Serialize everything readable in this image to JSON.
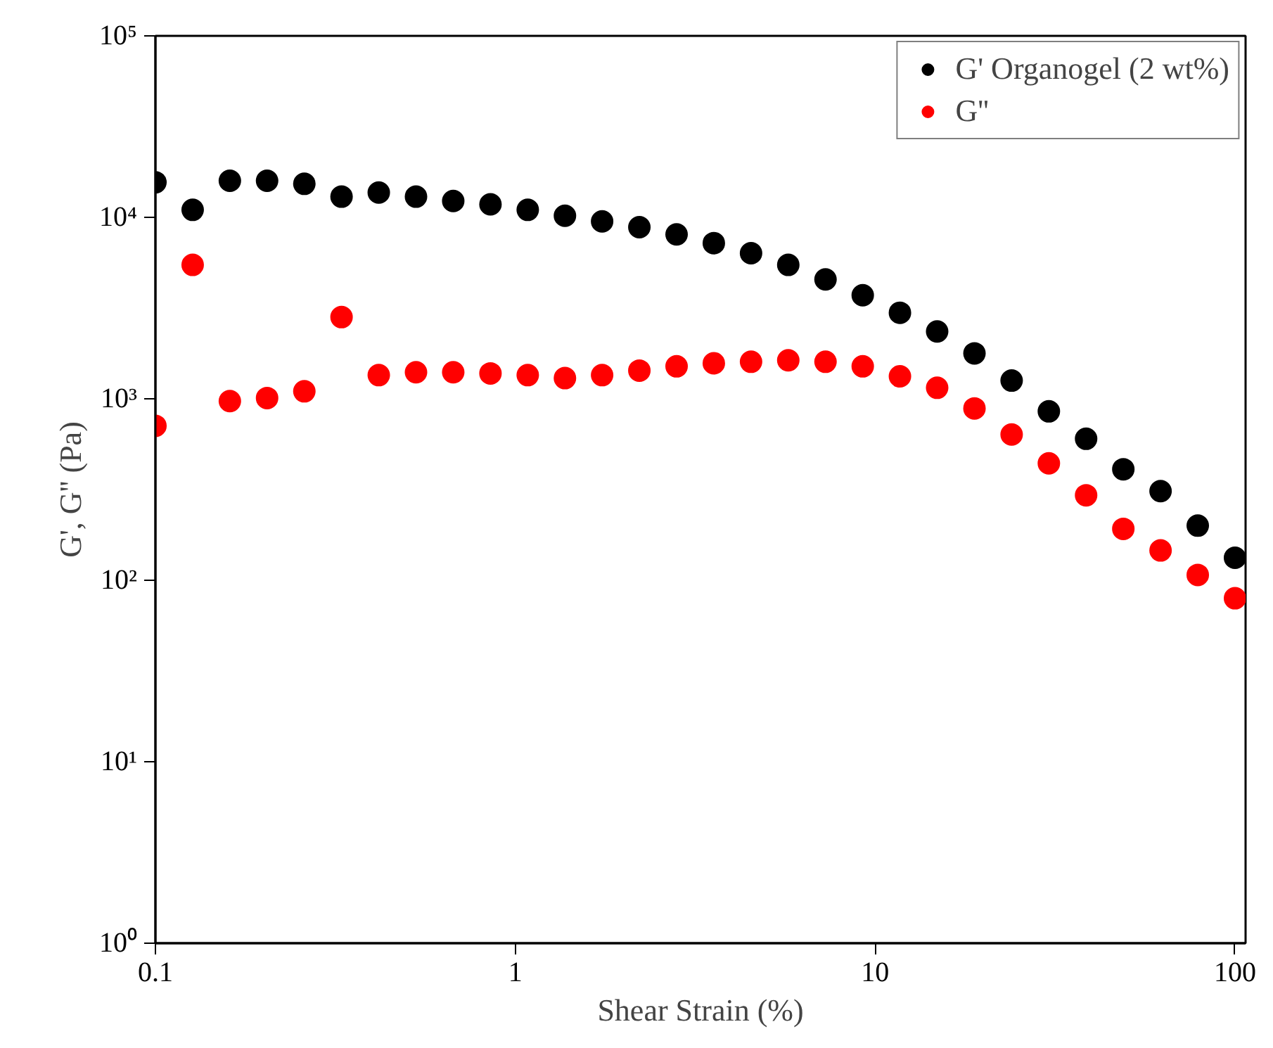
{
  "chart_data": {
    "type": "scatter",
    "xlabel": "Shear Strain (%)",
    "ylabel": "G', G'' (Pa)",
    "x": [
      0.1,
      0.1269,
      0.161,
      0.2043,
      0.2593,
      0.329,
      0.4175,
      0.5298,
      0.6723,
      0.8532,
      1.083,
      1.374,
      1.743,
      2.212,
      2.807,
      3.562,
      4.52,
      5.736,
      7.279,
      9.237,
      11.72,
      14.87,
      18.88,
      23.95,
      30.39,
      38.57,
      48.94,
      62.11,
      78.8,
      100
    ],
    "series": [
      {
        "name": "G' Organogel (2 wt%)",
        "color": "#000000",
        "values": [
          15600,
          11000,
          15900,
          15900,
          15300,
          13000,
          13700,
          13000,
          12300,
          11800,
          11000,
          10200,
          9500,
          8830,
          8050,
          7210,
          6340,
          5470,
          4550,
          3720,
          2980,
          2350,
          1780,
          1260,
          853,
          602,
          409,
          310,
          200,
          133
        ]
      },
      {
        "name": "G''",
        "color": "#ff0000",
        "values": [
          710,
          5470,
          971,
          1010,
          1100,
          2820,
          1350,
          1400,
          1400,
          1380,
          1350,
          1300,
          1350,
          1430,
          1510,
          1570,
          1600,
          1630,
          1600,
          1510,
          1330,
          1150,
          885,
          636,
          441,
          294,
          192,
          146,
          107,
          79.6
        ]
      }
    ],
    "log": "xy",
    "marker": "circle",
    "grid": false,
    "legend": "top right",
    "xlim": [
      0.1,
      107
    ],
    "ylim": [
      1,
      100000
    ],
    "xticks": [
      {
        "value": 0.1,
        "label": "0.1"
      },
      1,
      10,
      100
    ],
    "yticks": [
      {
        "value": 1,
        "label": "10⁰"
      },
      {
        "value": 10,
        "label": "10¹"
      },
      {
        "value": 100,
        "label": "10²"
      },
      {
        "value": 1000,
        "label": "10³"
      },
      {
        "value": 10000,
        "label": "10⁴"
      },
      {
        "value": 100000,
        "label": "10⁵"
      }
    ]
  }
}
